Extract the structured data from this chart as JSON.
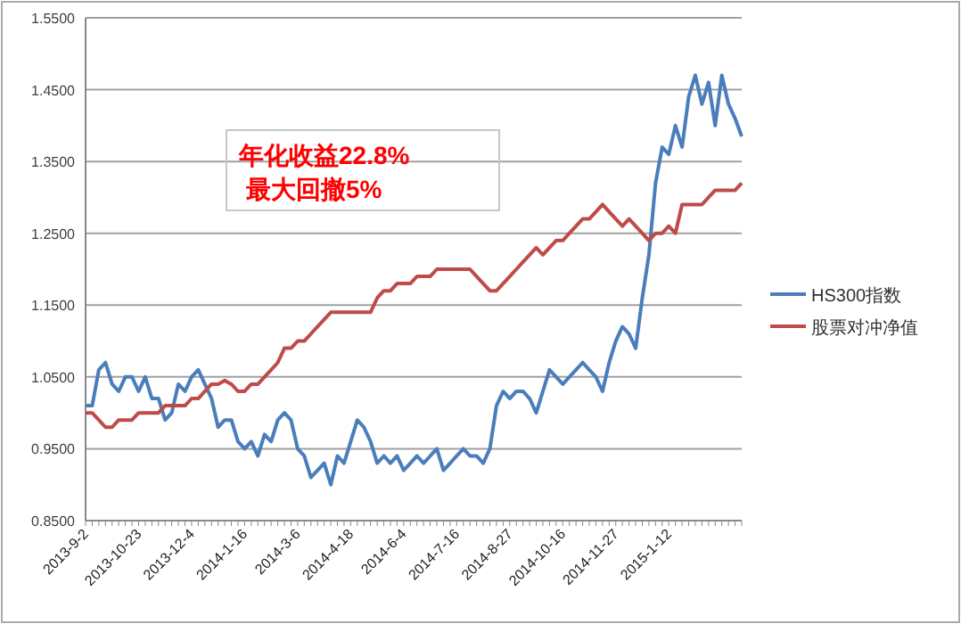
{
  "chart_data": {
    "type": "line",
    "categories": [
      "2013-9-2",
      null,
      null,
      null,
      null,
      null,
      null,
      null,
      "2013-10-23",
      null,
      null,
      null,
      null,
      null,
      null,
      null,
      "2013-12-4",
      null,
      null,
      null,
      null,
      null,
      null,
      null,
      "2014-1-16",
      null,
      null,
      null,
      null,
      null,
      null,
      null,
      "2014-3-6",
      null,
      null,
      null,
      null,
      null,
      null,
      null,
      "2014-4-18",
      null,
      null,
      null,
      null,
      null,
      null,
      null,
      "2014-6-4",
      null,
      null,
      null,
      null,
      null,
      null,
      null,
      "2014-7-16",
      null,
      null,
      null,
      null,
      null,
      null,
      null,
      "2014-8-27",
      null,
      null,
      null,
      null,
      null,
      null,
      null,
      "2014-10-16",
      null,
      null,
      null,
      null,
      null,
      null,
      null,
      "2014-11-27",
      null,
      null,
      null,
      null,
      null,
      null,
      null,
      "2015-1-12",
      null,
      null,
      null,
      null,
      null,
      null,
      null,
      null,
      null,
      null,
      null
    ],
    "series": [
      {
        "name": "HS300指数",
        "color": "#4a7ebb",
        "values": [
          1.01,
          1.01,
          1.06,
          1.07,
          1.04,
          1.03,
          1.05,
          1.05,
          1.03,
          1.05,
          1.02,
          1.02,
          0.99,
          1.0,
          1.04,
          1.03,
          1.05,
          1.06,
          1.04,
          1.02,
          0.98,
          0.99,
          0.99,
          0.96,
          0.95,
          0.96,
          0.94,
          0.97,
          0.96,
          0.99,
          1.0,
          0.99,
          0.95,
          0.94,
          0.91,
          0.92,
          0.93,
          0.9,
          0.94,
          0.93,
          0.96,
          0.99,
          0.98,
          0.96,
          0.93,
          0.94,
          0.93,
          0.94,
          0.92,
          0.93,
          0.94,
          0.93,
          0.94,
          0.95,
          0.92,
          0.93,
          0.94,
          0.95,
          0.94,
          0.94,
          0.93,
          0.95,
          1.01,
          1.03,
          1.02,
          1.03,
          1.03,
          1.02,
          1.0,
          1.03,
          1.06,
          1.05,
          1.04,
          1.05,
          1.06,
          1.07,
          1.06,
          1.05,
          1.03,
          1.07,
          1.1,
          1.12,
          1.11,
          1.09,
          1.16,
          1.22,
          1.32,
          1.37,
          1.36,
          1.4,
          1.37,
          1.44,
          1.47,
          1.43,
          1.46,
          1.4,
          1.47,
          1.43,
          1.41,
          1.385
        ]
      },
      {
        "name": "股票对冲净值",
        "color": "#be4b48",
        "values": [
          1.0,
          1.0,
          0.99,
          0.98,
          0.98,
          0.99,
          0.99,
          0.99,
          1.0,
          1.0,
          1.0,
          1.0,
          1.01,
          1.01,
          1.01,
          1.01,
          1.02,
          1.02,
          1.03,
          1.04,
          1.04,
          1.045,
          1.04,
          1.03,
          1.03,
          1.04,
          1.04,
          1.05,
          1.06,
          1.07,
          1.09,
          1.09,
          1.1,
          1.1,
          1.11,
          1.12,
          1.13,
          1.14,
          1.14,
          1.14,
          1.14,
          1.14,
          1.14,
          1.14,
          1.16,
          1.17,
          1.17,
          1.18,
          1.18,
          1.18,
          1.19,
          1.19,
          1.19,
          1.2,
          1.2,
          1.2,
          1.2,
          1.2,
          1.2,
          1.19,
          1.18,
          1.17,
          1.17,
          1.18,
          1.19,
          1.2,
          1.21,
          1.22,
          1.23,
          1.22,
          1.23,
          1.24,
          1.24,
          1.25,
          1.26,
          1.27,
          1.27,
          1.28,
          1.29,
          1.28,
          1.27,
          1.26,
          1.27,
          1.26,
          1.25,
          1.24,
          1.25,
          1.25,
          1.26,
          1.25,
          1.29,
          1.29,
          1.29,
          1.29,
          1.3,
          1.31,
          1.31,
          1.31,
          1.31,
          1.32
        ]
      }
    ],
    "ylim": [
      0.85,
      1.55
    ],
    "yticks": [
      {
        "value": 0.85,
        "label": "0.8500"
      },
      {
        "value": 0.95,
        "label": "0.9500"
      },
      {
        "value": 1.05,
        "label": "1.0500"
      },
      {
        "value": 1.15,
        "label": "1.1500"
      },
      {
        "value": 1.25,
        "label": "1.2500"
      },
      {
        "value": 1.35,
        "label": "1.3500"
      },
      {
        "value": 1.45,
        "label": "1.4500"
      },
      {
        "value": 1.55,
        "label": "1.5500"
      }
    ],
    "grid": "y",
    "legend": "right",
    "annotations": [
      "年化收益22.8%",
      "最大回撤5%"
    ]
  }
}
